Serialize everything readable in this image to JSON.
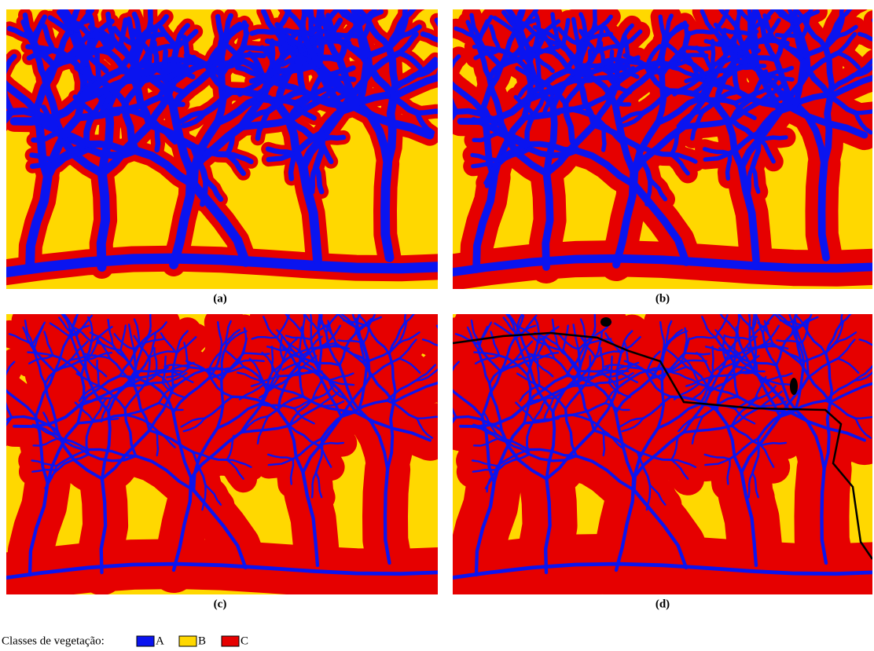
{
  "panels": [
    {
      "label": "(a)"
    },
    {
      "label": "(b)"
    },
    {
      "label": "(c)"
    },
    {
      "label": "(d)"
    }
  ],
  "legend": {
    "title": "Classes de vegetação:",
    "items": [
      {
        "label": "A",
        "color": "#0a14f0"
      },
      {
        "label": "B",
        "color": "#ffd800"
      },
      {
        "label": "C",
        "color": "#e60000"
      }
    ]
  }
}
